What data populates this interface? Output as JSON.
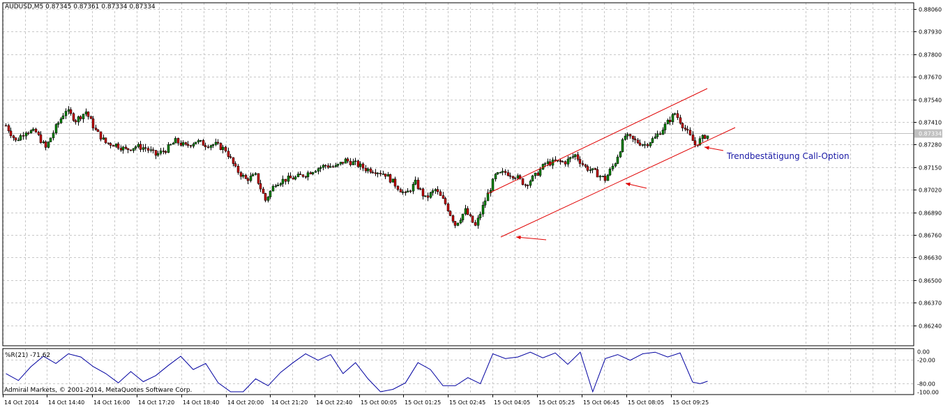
{
  "header": {
    "info": "AUDUSD,M5  0.87345 0.87361 0.87334 0.87334"
  },
  "indicator": {
    "label": "%R(21) -71.62",
    "levels": [
      "0.00",
      "-20.00",
      "-80.00",
      "-100.00"
    ]
  },
  "copyright": "Admiral Markets, © 2001-2014, MetaQuotes Software Corp.",
  "annotation": "Trendbestätigung Call-Option",
  "current_price_label": "0.87334",
  "colors": {
    "candle_line": "#000000",
    "bull_body": "#008000",
    "bear_body": "#C00000",
    "grid": "#C8C8C8",
    "channel": "#E00000",
    "arrow": "#E00000",
    "annotation_text": "#1A1AA6",
    "indicator_line": "#0000A0",
    "price_line": "#C0C0C0"
  },
  "chart_data": [
    {
      "type": "candlestick",
      "symbol": "AUDUSD",
      "timeframe": "M5",
      "y_ticks": [
        "0.88060",
        "0.87930",
        "0.87800",
        "0.87670",
        "0.87540",
        "0.87410",
        "0.87280",
        "0.87150",
        "0.87020",
        "0.86890",
        "0.86760",
        "0.86630",
        "0.86500",
        "0.86370",
        "0.86240"
      ],
      "ylim": [
        0.86138,
        0.88099
      ],
      "x_ticks": [
        "14 Oct 2014",
        "14 Oct 14:40",
        "14 Oct 16:00",
        "14 Oct 17:20",
        "14 Oct 18:40",
        "14 Oct 20:00",
        "14 Oct 21:20",
        "14 Oct 22:40",
        "15 Oct 00:05",
        "15 Oct 01:25",
        "15 Oct 02:45",
        "15 Oct 04:05",
        "15 Oct 05:25",
        "15 Oct 06:45",
        "15 Oct 08:05",
        "15 Oct 09:25"
      ],
      "close_path": [
        [
          0,
          0.8739
        ],
        [
          4,
          0.873
        ],
        [
          8,
          0.8736
        ],
        [
          12,
          0.8735
        ],
        [
          16,
          0.8726
        ],
        [
          20,
          0.8738
        ],
        [
          24,
          0.8748
        ],
        [
          28,
          0.8742
        ],
        [
          32,
          0.8747
        ],
        [
          36,
          0.8736
        ],
        [
          40,
          0.8729
        ],
        [
          44,
          0.8728
        ],
        [
          48,
          0.8725
        ],
        [
          52,
          0.8727
        ],
        [
          56,
          0.8726
        ],
        [
          60,
          0.8722
        ],
        [
          64,
          0.8725
        ],
        [
          68,
          0.873
        ],
        [
          72,
          0.8727
        ],
        [
          76,
          0.873
        ],
        [
          80,
          0.8728
        ],
        [
          84,
          0.8728
        ],
        [
          88,
          0.8725
        ],
        [
          92,
          0.8714
        ],
        [
          96,
          0.8708
        ],
        [
          100,
          0.871
        ],
        [
          104,
          0.8696
        ],
        [
          108,
          0.8706
        ],
        [
          112,
          0.8708
        ],
        [
          116,
          0.8709
        ],
        [
          120,
          0.8711
        ],
        [
          124,
          0.8714
        ],
        [
          128,
          0.8716
        ],
        [
          132,
          0.8715
        ],
        [
          136,
          0.8719
        ],
        [
          140,
          0.8717
        ],
        [
          144,
          0.8714
        ],
        [
          148,
          0.8713
        ],
        [
          152,
          0.8711
        ],
        [
          156,
          0.8705
        ],
        [
          160,
          0.8699
        ],
        [
          164,
          0.8706
        ],
        [
          168,
          0.8697
        ],
        [
          172,
          0.8702
        ],
        [
          176,
          0.8694
        ],
        [
          180,
          0.8682
        ],
        [
          184,
          0.869
        ],
        [
          188,
          0.8681
        ],
        [
          192,
          0.8696
        ],
        [
          196,
          0.871
        ],
        [
          200,
          0.8712
        ],
        [
          204,
          0.871
        ],
        [
          208,
          0.8705
        ],
        [
          212,
          0.871
        ],
        [
          216,
          0.8717
        ],
        [
          220,
          0.8718
        ],
        [
          224,
          0.8718
        ],
        [
          228,
          0.8722
        ],
        [
          232,
          0.8715
        ],
        [
          236,
          0.8712
        ],
        [
          240,
          0.8708
        ],
        [
          244,
          0.8718
        ],
        [
          248,
          0.8733
        ],
        [
          252,
          0.873
        ],
        [
          256,
          0.8728
        ],
        [
          260,
          0.8732
        ],
        [
          264,
          0.8739
        ],
        [
          268,
          0.8746
        ],
        [
          272,
          0.8737
        ],
        [
          276,
          0.8728
        ],
        [
          280,
          0.8733
        ],
        [
          281,
          0.8733
        ]
      ],
      "indicator_points": [
        [
          0,
          -55
        ],
        [
          5,
          -72
        ],
        [
          10,
          -38
        ],
        [
          15,
          -12
        ],
        [
          20,
          -30
        ],
        [
          25,
          -6
        ],
        [
          30,
          -14
        ],
        [
          35,
          -38
        ],
        [
          40,
          -55
        ],
        [
          45,
          -78
        ],
        [
          50,
          -50
        ],
        [
          55,
          -75
        ],
        [
          60,
          -60
        ],
        [
          65,
          -35
        ],
        [
          70,
          -12
        ],
        [
          75,
          -45
        ],
        [
          80,
          -30
        ],
        [
          85,
          -78
        ],
        [
          90,
          -100
        ],
        [
          95,
          -100
        ],
        [
          100,
          -68
        ],
        [
          105,
          -85
        ],
        [
          110,
          -52
        ],
        [
          115,
          -28
        ],
        [
          120,
          -6
        ],
        [
          125,
          -22
        ],
        [
          130,
          -8
        ],
        [
          135,
          -55
        ],
        [
          140,
          -28
        ],
        [
          145,
          -68
        ],
        [
          150,
          -100
        ],
        [
          155,
          -94
        ],
        [
          160,
          -78
        ],
        [
          165,
          -28
        ],
        [
          170,
          -45
        ],
        [
          175,
          -85
        ],
        [
          180,
          -85
        ],
        [
          185,
          -65
        ],
        [
          190,
          -80
        ],
        [
          195,
          -6
        ],
        [
          200,
          -18
        ],
        [
          205,
          -14
        ],
        [
          210,
          -2
        ],
        [
          215,
          -16
        ],
        [
          220,
          -4
        ],
        [
          225,
          -32
        ],
        [
          230,
          -2
        ],
        [
          235,
          -100
        ],
        [
          240,
          -18
        ],
        [
          245,
          -8
        ],
        [
          250,
          -22
        ],
        [
          255,
          -6
        ],
        [
          260,
          -2
        ],
        [
          265,
          -14
        ],
        [
          270,
          -4
        ],
        [
          275,
          -76
        ],
        [
          278,
          -80
        ],
        [
          281,
          -74
        ]
      ]
    }
  ]
}
